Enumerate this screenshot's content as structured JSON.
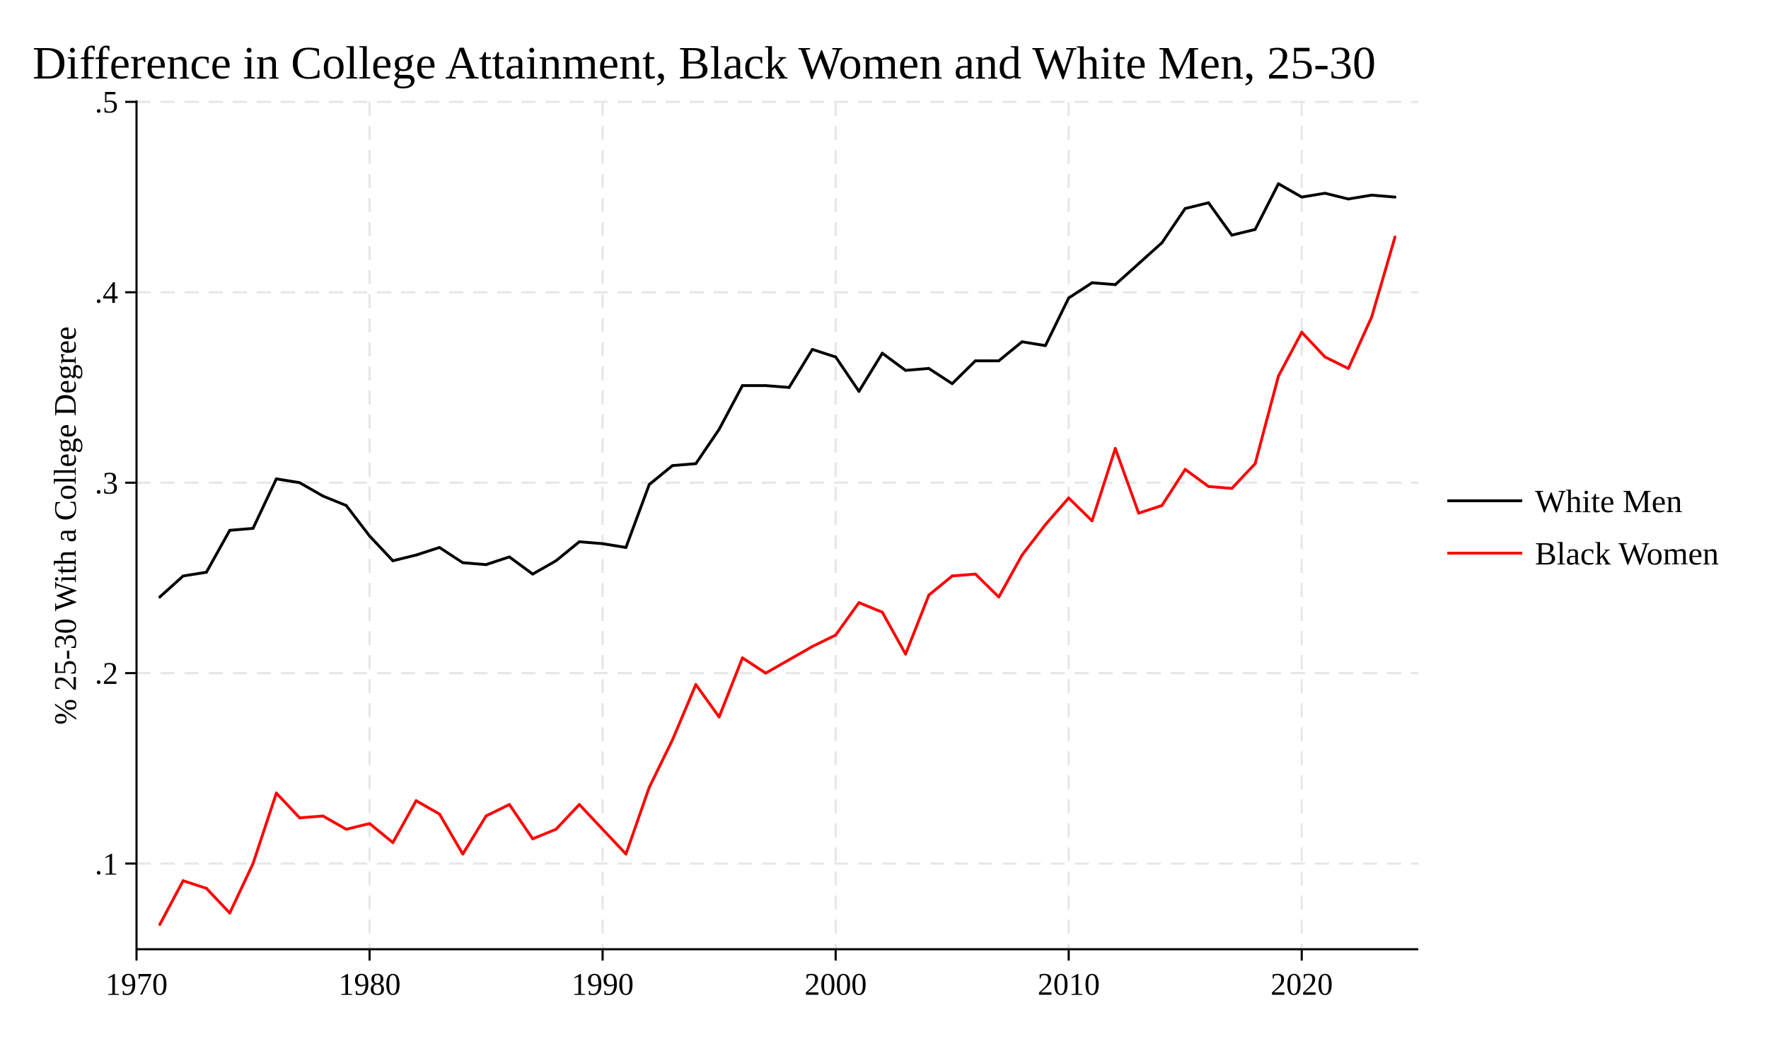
{
  "chart_data": {
    "type": "line",
    "title": "Difference in College Attainment, Black Women and White Men, 25-30",
    "xlabel": "",
    "ylabel": "% 25-30 With a College Degree",
    "xlim": [
      1970,
      2025
    ],
    "ylim": [
      0.055,
      0.5
    ],
    "x_ticks": [
      1970,
      1980,
      1990,
      2000,
      2010,
      2020
    ],
    "x_tick_labels": [
      "1970",
      "1980",
      "1990",
      "2000",
      "2010",
      "2020"
    ],
    "y_ticks": [
      0.1,
      0.2,
      0.3,
      0.4,
      0.5
    ],
    "y_tick_labels": [
      ".1",
      ".2",
      ".3",
      ".4",
      ".5"
    ],
    "grid": true,
    "legend_position": "right",
    "x": [
      1971,
      1972,
      1973,
      1974,
      1975,
      1976,
      1977,
      1978,
      1979,
      1980,
      1981,
      1982,
      1983,
      1984,
      1985,
      1986,
      1987,
      1988,
      1989,
      1990,
      1991,
      1992,
      1993,
      1994,
      1995,
      1996,
      1997,
      1998,
      1999,
      2000,
      2001,
      2002,
      2003,
      2004,
      2005,
      2006,
      2007,
      2008,
      2009,
      2010,
      2011,
      2012,
      2013,
      2014,
      2015,
      2016,
      2017,
      2018,
      2019,
      2020,
      2021,
      2022,
      2023,
      2024
    ],
    "series": [
      {
        "name": "White Men",
        "color": "#000000",
        "values": [
          0.24,
          0.251,
          0.253,
          0.275,
          0.276,
          0.302,
          0.3,
          0.293,
          0.288,
          0.272,
          0.259,
          0.262,
          0.266,
          0.258,
          0.257,
          0.261,
          0.252,
          0.259,
          0.269,
          0.268,
          0.266,
          0.299,
          0.309,
          0.31,
          0.328,
          0.351,
          0.351,
          0.35,
          0.37,
          0.366,
          0.348,
          0.368,
          0.359,
          0.36,
          0.352,
          0.364,
          0.364,
          0.374,
          0.372,
          0.397,
          0.405,
          0.404,
          0.415,
          0.426,
          0.444,
          0.447,
          0.43,
          0.433,
          0.457,
          0.45,
          0.452,
          0.449,
          0.451,
          0.45
        ]
      },
      {
        "name": "Black Women",
        "color": "#ff0000",
        "values": [
          0.068,
          0.091,
          0.087,
          0.074,
          0.1,
          0.137,
          0.124,
          0.125,
          0.118,
          0.121,
          0.111,
          0.133,
          0.126,
          0.105,
          0.125,
          0.131,
          0.113,
          0.118,
          0.131,
          0.118,
          0.105,
          0.14,
          0.165,
          0.194,
          0.177,
          0.208,
          0.2,
          0.207,
          0.214,
          0.22,
          0.237,
          0.232,
          0.21,
          0.241,
          0.251,
          0.252,
          0.24,
          0.262,
          0.278,
          0.292,
          0.28,
          0.318,
          0.284,
          0.288,
          0.307,
          0.298,
          0.297,
          0.31,
          0.356,
          0.379,
          0.366,
          0.36,
          0.387,
          0.429
        ]
      }
    ]
  }
}
